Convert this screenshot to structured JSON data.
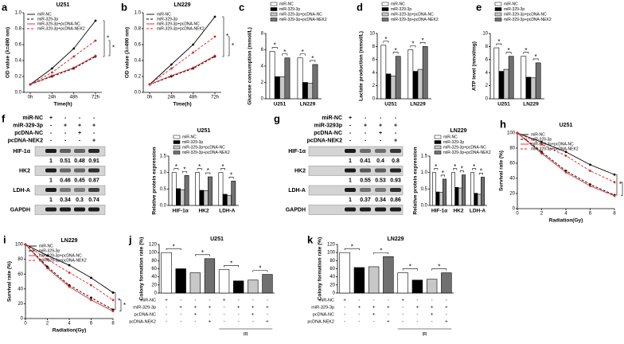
{
  "chart_data": [
    {
      "panel": "a",
      "type": "line",
      "title": "U251",
      "x_label": "Time(h)",
      "y_label": "OD value (λ=490 nm)",
      "categories": [
        "0h",
        "24h",
        "48h",
        "72h"
      ],
      "ylim": [
        0,
        1.0
      ],
      "yticks": [
        {
          "value": 0,
          "label": "0.0"
        },
        0.2,
        0.4,
        0.6,
        0.8,
        {
          "value": 1,
          "label": "1.0"
        }
      ],
      "series": [
        {
          "name": "miR-NC",
          "color": "#000000",
          "dash": false,
          "values": [
            0.1,
            0.3,
            0.55,
            0.9
          ]
        },
        {
          "name": "miR-329-3p",
          "color": "#000000",
          "dash": true,
          "values": [
            0.1,
            0.2,
            0.3,
            0.45
          ]
        },
        {
          "name": "miR-329-3p+pcDNA-NC",
          "color": "#e02020",
          "dash": false,
          "values": [
            0.1,
            0.21,
            0.31,
            0.46
          ]
        },
        {
          "name": "miR-329-3p+pcDNA-NEK2",
          "color": "#e02020",
          "dash": true,
          "values": [
            0.1,
            0.25,
            0.45,
            0.65
          ]
        }
      ],
      "annotations": [
        "*",
        "*"
      ]
    },
    {
      "panel": "b",
      "type": "line",
      "title": "LN229",
      "x_label": "Time(h)",
      "y_label": "OD value (λ=490 nm)",
      "categories": [
        "0h",
        "24h",
        "48h",
        "72h"
      ],
      "ylim": [
        0,
        1.0
      ],
      "yticks": [
        {
          "value": 0,
          "label": "0.0"
        },
        0.2,
        0.4,
        0.6,
        0.8,
        {
          "value": 1,
          "label": "1.0"
        }
      ],
      "series": [
        {
          "name": "miR-NC",
          "color": "#000000",
          "dash": false,
          "values": [
            0.1,
            0.35,
            0.6,
            0.95
          ]
        },
        {
          "name": "miR-329-3p",
          "color": "#000000",
          "dash": true,
          "values": [
            0.1,
            0.2,
            0.3,
            0.45
          ]
        },
        {
          "name": "miR-329-3p+pcDNA-NC",
          "color": "#e02020",
          "dash": false,
          "values": [
            0.1,
            0.21,
            0.31,
            0.46
          ]
        },
        {
          "name": "miR-329-3p+pcDNA-NEK2",
          "color": "#e02020",
          "dash": true,
          "values": [
            0.1,
            0.3,
            0.5,
            0.7
          ]
        }
      ],
      "annotations": [
        "*",
        "*"
      ]
    },
    {
      "panel": "c",
      "type": "grouped_bar",
      "y_label": "Glucose consumption (mmol/L)",
      "categories": [
        "U251",
        "LN229"
      ],
      "ylim": [
        0,
        8
      ],
      "yticks": [
        0,
        2,
        4,
        6,
        8
      ],
      "series": [
        {
          "name": "miR-NC",
          "color": "#ffffff",
          "values": [
            5.8,
            5.0
          ]
        },
        {
          "name": "miR-329-3p",
          "color": "#000000",
          "values": [
            2.7,
            2.0
          ]
        },
        {
          "name": "miR-329-3p+pcDNA-NC",
          "color": "#c8c8c8",
          "values": [
            2.7,
            1.9
          ]
        },
        {
          "name": "miR-329-3p+pcDNA-NEK2",
          "color": "#707070",
          "values": [
            5.0,
            4.2
          ]
        }
      ],
      "annotations": [
        "*",
        "*",
        "*",
        "*"
      ]
    },
    {
      "panel": "d",
      "type": "grouped_bar",
      "y_label": "Lactate production (mmol/L)",
      "categories": [
        "U251",
        "LN229"
      ],
      "ylim": [
        0,
        10
      ],
      "yticks": [
        0,
        2,
        4,
        6,
        8,
        10
      ],
      "series": [
        {
          "name": "miR-NC",
          "color": "#ffffff",
          "values": [
            8.2,
            7.5
          ]
        },
        {
          "name": "miR-329-3p",
          "color": "#000000",
          "values": [
            3.8,
            4.2
          ]
        },
        {
          "name": "miR-329-3p+pcDNA-NC",
          "color": "#c8c8c8",
          "values": [
            3.5,
            4.5
          ]
        },
        {
          "name": "miR-329-3p+pcDNA-NEK2",
          "color": "#707070",
          "values": [
            6.5,
            8.0
          ]
        }
      ],
      "annotations": [
        "*",
        "*",
        "*",
        "*"
      ]
    },
    {
      "panel": "e",
      "type": "grouped_bar",
      "y_label": "ATP level (nmol/mg)",
      "categories": [
        "U251",
        "LN229"
      ],
      "ylim": [
        0,
        10
      ],
      "yticks": [
        0,
        2,
        4,
        6,
        8,
        10
      ],
      "series": [
        {
          "name": "miR-NC",
          "color": "#ffffff",
          "values": [
            7.8,
            6.5
          ]
        },
        {
          "name": "miR-329-3p",
          "color": "#000000",
          "values": [
            4.2,
            3.3
          ]
        },
        {
          "name": "miR-329-3p+pcDNA-NC",
          "color": "#c8c8c8",
          "values": [
            4.5,
            3.2
          ]
        },
        {
          "name": "miR-329-3p+pcDNA-NEK2",
          "color": "#707070",
          "values": [
            6.5,
            5.5
          ]
        }
      ],
      "annotations": [
        "*",
        "*",
        "*",
        "*"
      ]
    },
    {
      "type": "grouped_bar",
      "title": "U251",
      "y_label": "Relative protein expression",
      "categories": [
        "HIF-1α",
        "HK2",
        "LDH-A"
      ],
      "ylim": [
        0,
        1.5
      ],
      "yticks": [
        {
          "value": 0,
          "label": "0.0"
        },
        0.5,
        {
          "value": 1,
          "label": "1.0"
        },
        1.5
      ],
      "series": [
        {
          "name": "miR-NC",
          "color": "#ffffff",
          "values": [
            1,
            1,
            1
          ]
        },
        {
          "name": "miR-329-3p",
          "color": "#000000",
          "values": [
            0.51,
            0.46,
            0.34
          ]
        },
        {
          "name": "miR-329-3p+pcDNA-NC",
          "color": "#c8c8c8",
          "values": [
            0.48,
            0.45,
            0.3
          ]
        },
        {
          "name": "miR-329-3p+pcDNA-NEK2",
          "color": "#707070",
          "values": [
            0.91,
            0.87,
            0.74
          ]
        }
      ],
      "annotations": [
        "*",
        "*",
        "*",
        "*",
        "*",
        "*"
      ]
    },
    {
      "type": "grouped_bar",
      "title": "LN229",
      "y_label": "Relative protein expression",
      "categories": [
        "HIF-1α",
        "HK2",
        "LDH-A"
      ],
      "ylim": [
        0,
        1.5
      ],
      "yticks": [
        {
          "value": 0,
          "label": "0.0"
        },
        0.5,
        {
          "value": 1,
          "label": "1.0"
        },
        1.5
      ],
      "series": [
        {
          "name": "miR-NC",
          "color": "#ffffff",
          "values": [
            1,
            1,
            1
          ]
        },
        {
          "name": "miR-329-3p",
          "color": "#000000",
          "values": [
            0.41,
            0.55,
            0.37
          ]
        },
        {
          "name": "miR-329-3p+pcDNA-NC",
          "color": "#c8c8c8",
          "values": [
            0.4,
            0.53,
            0.34
          ]
        },
        {
          "name": "miR-329-3p+pcDNA-NEK2",
          "color": "#707070",
          "values": [
            0.8,
            0.93,
            0.86
          ]
        }
      ],
      "annotations": [
        "*",
        "*",
        "*",
        "*",
        "*",
        "*"
      ]
    },
    {
      "panel": "h",
      "type": "line",
      "title": "U251",
      "x_label": "Radiation(Gy)",
      "y_label": "Survival rate (%)",
      "x": [
        0,
        2,
        4,
        6,
        8
      ],
      "xlim": [
        0,
        8
      ],
      "xticks": [
        0,
        2,
        4,
        6,
        8
      ],
      "ylim": [
        0,
        100
      ],
      "yticks": [
        0,
        20,
        40,
        60,
        80,
        100
      ],
      "series": [
        {
          "name": "miR-NC",
          "color": "#000000",
          "dash": false,
          "values": [
            100,
            88,
            75,
            58,
            45
          ]
        },
        {
          "name": "miR-329-3p",
          "color": "#000000",
          "dash": true,
          "values": [
            100,
            75,
            50,
            32,
            18
          ]
        },
        {
          "name": "miR-329-3p+pcDNA-NC",
          "color": "#e02020",
          "dash": false,
          "values": [
            100,
            73,
            48,
            30,
            17
          ]
        },
        {
          "name": "miR-329-3p+pcDNA-NEK2",
          "color": "#e02020",
          "dash": true,
          "values": [
            100,
            85,
            70,
            50,
            35
          ]
        }
      ],
      "annotations": [
        "*",
        "*"
      ]
    },
    {
      "panel": "i",
      "type": "line",
      "title": "LN229",
      "x_label": "Radiation(Gy)",
      "y_label": "Survival rate (%)",
      "x": [
        0,
        2,
        4,
        6,
        8
      ],
      "xlim": [
        0,
        8
      ],
      "xticks": [
        0,
        2,
        4,
        6,
        8
      ],
      "ylim": [
        0,
        100
      ],
      "yticks": [
        0,
        20,
        40,
        60,
        80,
        100
      ],
      "series": [
        {
          "name": "miR-NC",
          "color": "#000000",
          "dash": false,
          "values": [
            100,
            85,
            72,
            55,
            35
          ]
        },
        {
          "name": "miR-329-3p",
          "color": "#000000",
          "dash": true,
          "values": [
            100,
            70,
            45,
            28,
            12
          ]
        },
        {
          "name": "miR-329-3p+pcDNA-NC",
          "color": "#e02020",
          "dash": false,
          "values": [
            100,
            68,
            43,
            25,
            10
          ]
        },
        {
          "name": "miR-329-3p+pcDNA-NEK2",
          "color": "#e02020",
          "dash": true,
          "values": [
            100,
            80,
            62,
            45,
            25
          ]
        }
      ],
      "annotations": [
        "*",
        "*"
      ]
    },
    {
      "panel": "j",
      "type": "bar",
      "title": "U251",
      "y_label": "Colony formation rate (%)",
      "values": [
        100,
        60,
        50,
        85,
        58,
        30,
        32,
        46
      ],
      "colors": [
        "#ffffff",
        "#000000",
        "#c8c8c8",
        "#707070",
        "#ffffff",
        "#000000",
        "#c8c8c8",
        "#707070"
      ],
      "ylim": [
        0,
        120
      ],
      "yticks": [
        0,
        20,
        40,
        60,
        80,
        100,
        120
      ],
      "conditions": [
        {
          "name": "miR-NC",
          "signs": [
            "+",
            "-",
            "-",
            "-",
            "+",
            "-",
            "-",
            "-"
          ]
        },
        {
          "name": "miR-329-3p",
          "signs": [
            "-",
            "+",
            "+",
            "+",
            "-",
            "+",
            "+",
            "+"
          ]
        },
        {
          "name": "pcDNA-NC",
          "signs": [
            "-",
            "-",
            "+",
            "-",
            "-",
            "-",
            "+",
            "-"
          ]
        },
        {
          "name": "pcDNA-NEK2",
          "signs": [
            "-",
            "-",
            "-",
            "+",
            "-",
            "-",
            "-",
            "+"
          ]
        }
      ],
      "group_label": "IR",
      "annotations": [
        "*",
        "*",
        "*",
        "*"
      ]
    },
    {
      "panel": "k",
      "type": "bar",
      "title": "LN229",
      "y_label": "Colony formation rate (%)",
      "values": [
        100,
        63,
        65,
        90,
        50,
        32,
        34,
        50
      ],
      "colors": [
        "#ffffff",
        "#000000",
        "#c8c8c8",
        "#707070",
        "#ffffff",
        "#000000",
        "#c8c8c8",
        "#707070"
      ],
      "ylim": [
        0,
        120
      ],
      "yticks": [
        0,
        20,
        40,
        60,
        80,
        100,
        120
      ],
      "conditions": [
        {
          "name": "miR-NC",
          "signs": [
            "+",
            "-",
            "-",
            "-",
            "+",
            "-",
            "-",
            "-"
          ]
        },
        {
          "name": "miR-329-3p",
          "signs": [
            "-",
            "+",
            "+",
            "+",
            "-",
            "+",
            "+",
            "+"
          ]
        },
        {
          "name": "pcDNA-NC",
          "signs": [
            "-",
            "-",
            "+",
            "-",
            "-",
            "-",
            "+",
            "-"
          ]
        },
        {
          "name": "pcDNA-NEK2",
          "signs": [
            "-",
            "-",
            "-",
            "+",
            "-",
            "-",
            "-",
            "+"
          ]
        }
      ],
      "group_label": "IR",
      "annotations": [
        "*",
        "*",
        "*",
        "*"
      ]
    }
  ],
  "blots": [
    {
      "panel": "f",
      "conditions": [
        {
          "name": "miR-NC",
          "signs": [
            "+",
            "-",
            "-",
            "-"
          ]
        },
        {
          "name": "miR-329-3p",
          "signs": [
            "-",
            "+",
            "+",
            "+"
          ]
        },
        {
          "name": "pcDNA-NC",
          "signs": [
            "-",
            "-",
            "+",
            "-"
          ]
        },
        {
          "name": "pcDNA-NEK2",
          "signs": [
            "-",
            "-",
            "-",
            "+"
          ]
        }
      ],
      "bands": [
        {
          "name": "HIF-1α",
          "values": [
            1,
            0.51,
            0.48,
            0.91
          ]
        },
        {
          "name": "HK2",
          "values": [
            1,
            0.46,
            0.45,
            0.87
          ]
        },
        {
          "name": "LDH-A",
          "values": [
            1,
            0.34,
            0.3,
            0.74
          ]
        },
        {
          "name": "GAPDH"
        }
      ]
    },
    {
      "panel": "g",
      "conditions": [
        {
          "name": "miR-NC",
          "signs": [
            "+",
            "-",
            "-",
            "-"
          ]
        },
        {
          "name": "miR-3293p",
          "signs": [
            "-",
            "+",
            "+",
            "+"
          ]
        },
        {
          "name": "pcDNA-NC",
          "signs": [
            "-",
            "-",
            "+",
            "-"
          ]
        },
        {
          "name": "pcDNA-NEK2",
          "signs": [
            "-",
            "-",
            "-",
            "+"
          ]
        }
      ],
      "bands": [
        {
          "name": "HIF-1α",
          "values": [
            1,
            0.41,
            0.4,
            0.8
          ]
        },
        {
          "name": "HK2",
          "values": [
            1,
            0.55,
            0.53,
            0.93
          ]
        },
        {
          "name": "LDH-A",
          "values": [
            1,
            0.37,
            0.34,
            0.86
          ]
        },
        {
          "name": "GAPDH"
        }
      ]
    }
  ]
}
